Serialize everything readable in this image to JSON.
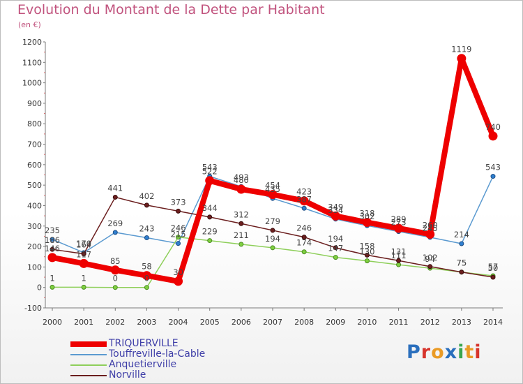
{
  "title": "Evolution du Montant de la Dette par Habitant",
  "subtitle": "(en €)",
  "logo": {
    "text": "Proxiti",
    "colors": [
      "#2a6fbd",
      "#d7342c",
      "#ea9b25",
      "#2a6fbd",
      "#3aa64f",
      "#ea9b25",
      "#d7342c"
    ]
  },
  "chart_data": {
    "type": "line",
    "title": "Evolution du Montant de la Dette par Habitant",
    "ylabel": "(en €)",
    "xlabel": "",
    "ylim": [
      -100,
      1200
    ],
    "yticks": [
      "-100",
      "0",
      "100",
      "200",
      "300",
      "400",
      "500",
      "600",
      "700",
      "800",
      "900",
      "1000",
      "1100",
      "1200"
    ],
    "ytick_values": [
      -100,
      0,
      100,
      200,
      300,
      400,
      500,
      600,
      700,
      800,
      900,
      1000,
      1100,
      1200
    ],
    "categories": [
      "2000",
      "2001",
      "2002",
      "2003",
      "2004",
      "2005",
      "2006",
      "2007",
      "2008",
      "2009",
      "2010",
      "2011",
      "2012",
      "2013",
      "2014"
    ],
    "grid": false,
    "legend_position": "bottom-left",
    "series": [
      {
        "name": "TRIQUERVILLE",
        "color": "#ee0000",
        "values": [
          146,
          117,
          85,
          58,
          30,
          522,
          480,
          454,
          423,
          349,
          318,
          289,
          260,
          1119,
          740
        ],
        "labels": [
          "146",
          "117",
          "85",
          "58",
          "30",
          "522",
          "480",
          "454",
          "423",
          "349",
          "318",
          "289",
          "260",
          "1119",
          "740"
        ]
      },
      {
        "name": "Touffreville-la-Cable",
        "color": "#5b9ad0",
        "values": [
          235,
          170,
          269,
          243,
          215,
          543,
          493,
          435,
          387,
          334,
          302,
          273,
          245,
          214,
          543
        ],
        "labels": [
          "235",
          "170",
          "269",
          "243",
          "215",
          "543",
          "493",
          "435",
          "387",
          "334",
          "302",
          "273",
          "245",
          "214",
          "543"
        ]
      },
      {
        "name": "Anquetierville",
        "color": "#8ecf5a",
        "values": [
          1,
          1,
          0,
          0,
          246,
          229,
          211,
          194,
          174,
          147,
          130,
          111,
          94,
          75,
          57
        ],
        "labels": [
          "1",
          "1",
          "0",
          "0",
          "246",
          "229",
          "211",
          "194",
          "174",
          "147",
          "130",
          "111",
          "94",
          "75",
          "57"
        ]
      },
      {
        "name": "Norville",
        "color": "#6b1e1e",
        "values": [
          186,
          164,
          441,
          402,
          373,
          344,
          312,
          279,
          246,
          194,
          158,
          131,
          102,
          75,
          50
        ],
        "labels": [
          "186",
          "164",
          "441",
          "402",
          "373",
          "344",
          "312",
          "279",
          "246",
          "194",
          "158",
          "131",
          "102",
          "75",
          "50"
        ]
      }
    ]
  }
}
